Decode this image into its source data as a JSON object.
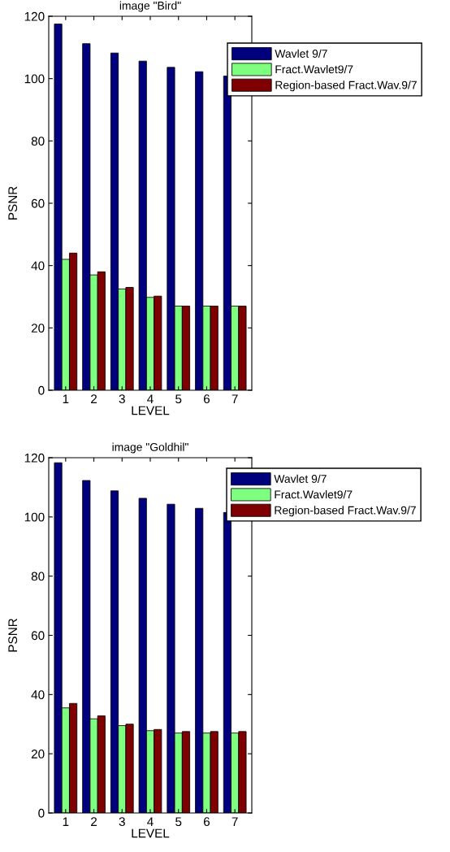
{
  "chart_data": [
    {
      "type": "bar",
      "title": "image \"Bird\"",
      "xlabel": "LEVEL",
      "ylabel": "PSNR",
      "categories": [
        "1",
        "2",
        "3",
        "4",
        "5",
        "6",
        "7"
      ],
      "ylim": [
        0,
        120
      ],
      "yticks": [
        0,
        20,
        40,
        60,
        80,
        100,
        120
      ],
      "legend": "top right",
      "grid": false,
      "series": [
        {
          "name": "Wavlet 9/7",
          "color": "#00007f",
          "values": [
            117.5,
            111.2,
            108.2,
            105.6,
            103.6,
            102.2,
            100.8
          ]
        },
        {
          "name": "Fract.Wavlet9/7",
          "color": "#7fff7f",
          "values": [
            42,
            37,
            32.5,
            29.8,
            27,
            27,
            27
          ]
        },
        {
          "name": "Region-based Fract.Wav.9/7",
          "color": "#7f0000",
          "values": [
            44,
            38,
            33,
            30.2,
            27,
            27,
            27
          ]
        }
      ]
    },
    {
      "type": "bar",
      "title": "image \"Goldhil\"",
      "xlabel": "LEVEL",
      "ylabel": "PSNR",
      "categories": [
        "1",
        "2",
        "3",
        "4",
        "5",
        "6",
        "7"
      ],
      "ylim": [
        0,
        120
      ],
      "yticks": [
        0,
        20,
        40,
        60,
        80,
        100,
        120
      ],
      "legend": "top right",
      "grid": false,
      "series": [
        {
          "name": "Wavlet 9/7",
          "color": "#00007f",
          "values": [
            118.3,
            112.3,
            108.8,
            106.3,
            104.3,
            102.9,
            101.5
          ]
        },
        {
          "name": "Fract.Wavlet9/7",
          "color": "#7fff7f",
          "values": [
            35.5,
            31.8,
            29.5,
            27.8,
            27,
            27,
            27
          ]
        },
        {
          "name": "Region-based Fract.Wav.9/7",
          "color": "#7f0000",
          "values": [
            37,
            32.8,
            30,
            28.2,
            27.5,
            27.5,
            27.5
          ]
        }
      ]
    }
  ]
}
